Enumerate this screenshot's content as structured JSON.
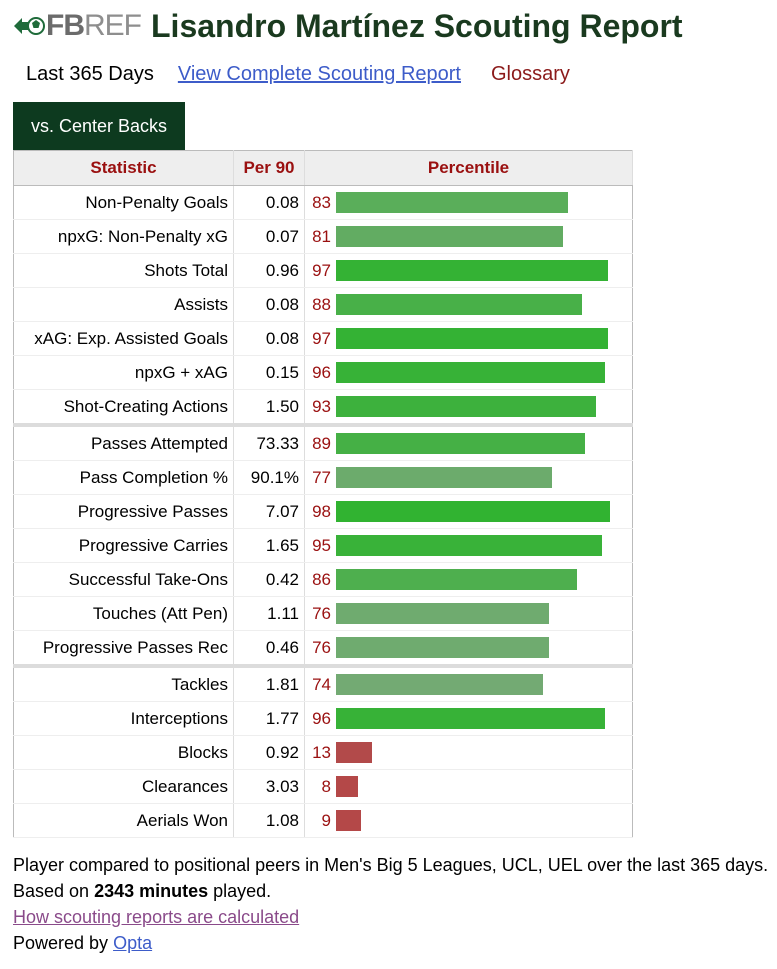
{
  "header": {
    "logo_bold": "FB",
    "logo_light": "REF",
    "title": "Lisandro Martínez Scouting Report"
  },
  "subnav": {
    "period": "Last 365 Days",
    "complete_link": "View Complete Scouting Report",
    "glossary": "Glossary"
  },
  "tab": {
    "label": "vs. Center Backs"
  },
  "table": {
    "headers": {
      "statistic": "Statistic",
      "per90": "Per 90",
      "percentile": "Percentile"
    },
    "rows": [
      {
        "stat": "Non-Penalty Goals",
        "per90": "0.08",
        "pct": "83",
        "pct_value": 83,
        "color": "#5aae5a"
      },
      {
        "stat": "npxG: Non-Penalty xG",
        "per90": "0.07",
        "pct": "81",
        "pct_value": 81,
        "color": "#62ac62"
      },
      {
        "stat": "Shots Total",
        "per90": "0.96",
        "pct": "97",
        "pct_value": 97,
        "color": "#34b234"
      },
      {
        "stat": "Assists",
        "per90": "0.08",
        "pct": "88",
        "pct_value": 88,
        "color": "#48b048"
      },
      {
        "stat": "xAG: Exp. Assisted Goals",
        "per90": "0.08",
        "pct": "97",
        "pct_value": 97,
        "color": "#34b234"
      },
      {
        "stat": "npxG + xAG",
        "per90": "0.15",
        "pct": "96",
        "pct_value": 96,
        "color": "#37b237"
      },
      {
        "stat": "Shot-Creating Actions",
        "per90": "1.50",
        "pct": "93",
        "pct_value": 93,
        "color": "#3db13d"
      },
      {
        "stat": "Passes Attempted",
        "per90": "73.33",
        "pct": "89",
        "pct_value": 89,
        "color": "#45b045",
        "sep": true
      },
      {
        "stat": "Pass Completion %",
        "per90": "90.1%",
        "pct": "77",
        "pct_value": 77,
        "color": "#6cab6c"
      },
      {
        "stat": "Progressive Passes",
        "per90": "7.07",
        "pct": "98",
        "pct_value": 98,
        "color": "#31b331"
      },
      {
        "stat": "Progressive Carries",
        "per90": "1.65",
        "pct": "95",
        "pct_value": 95,
        "color": "#39b239"
      },
      {
        "stat": "Successful Take-Ons",
        "per90": "0.42",
        "pct": "86",
        "pct_value": 86,
        "color": "#4eaf4e"
      },
      {
        "stat": "Touches (Att Pen)",
        "per90": "1.11",
        "pct": "76",
        "pct_value": 76,
        "color": "#6fab6f"
      },
      {
        "stat": "Progressive Passes Rec",
        "per90": "0.46",
        "pct": "76",
        "pct_value": 76,
        "color": "#6fab6f"
      },
      {
        "stat": "Tackles",
        "per90": "1.81",
        "pct": "74",
        "pct_value": 74,
        "color": "#73aa73",
        "sep": true
      },
      {
        "stat": "Interceptions",
        "per90": "1.77",
        "pct": "96",
        "pct_value": 96,
        "color": "#37b237"
      },
      {
        "stat": "Blocks",
        "per90": "0.92",
        "pct": "13",
        "pct_value": 13,
        "color": "#b24a4a"
      },
      {
        "stat": "Clearances",
        "per90": "3.03",
        "pct": "8",
        "pct_value": 8,
        "color": "#b44848"
      },
      {
        "stat": "Aerials Won",
        "per90": "1.08",
        "pct": "9",
        "pct_value": 9,
        "color": "#b44848"
      }
    ]
  },
  "footer": {
    "line1_start": "Player compared to positional peers in Men's Big 5 Leagues, UCL, UEL over the last 365 days. Based on ",
    "minutes": "2343 minutes",
    "line1_end": " played.",
    "calc_link": "How scouting reports are calculated",
    "powered_by": "Powered by ",
    "opta": "Opta"
  }
}
